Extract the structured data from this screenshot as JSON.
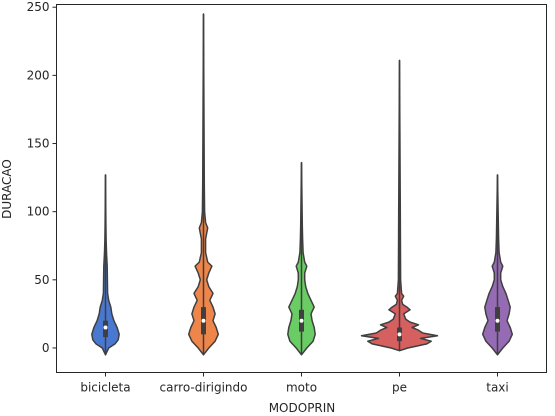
{
  "chart_data": {
    "type": "violin",
    "title": "",
    "xlabel": "MODOPRIN",
    "ylabel": "DURACAO",
    "ylim": [
      -18,
      252
    ],
    "yticks": [
      0,
      50,
      100,
      150,
      200,
      250
    ],
    "grid": false,
    "categories": [
      "bicicleta",
      "carro-dirigindo",
      "moto",
      "pe",
      "taxi"
    ],
    "colors": [
      "#4878d0",
      "#ee854a",
      "#6acc64",
      "#d65f5f",
      "#956cb4"
    ],
    "violins": [
      {
        "category": "bicicleta",
        "min": -5,
        "max": 127,
        "q1": 8,
        "median": 15,
        "q3": 20,
        "profile": [
          [
            -5,
            0
          ],
          [
            0,
            3
          ],
          [
            3,
            9
          ],
          [
            6,
            12
          ],
          [
            10,
            13
          ],
          [
            15,
            11
          ],
          [
            20,
            8
          ],
          [
            25,
            6
          ],
          [
            30,
            5
          ],
          [
            35,
            3
          ],
          [
            40,
            2
          ],
          [
            50,
            1.8
          ],
          [
            60,
            1.6
          ],
          [
            70,
            0.9
          ],
          [
            80,
            0.6
          ],
          [
            90,
            0.4
          ],
          [
            127,
            0
          ]
        ]
      },
      {
        "category": "carro-dirigindo",
        "min": -5,
        "max": 245,
        "q1": 10,
        "median": 20,
        "q3": 30,
        "profile": [
          [
            -5,
            0
          ],
          [
            0,
            5
          ],
          [
            5,
            11
          ],
          [
            10,
            14
          ],
          [
            15,
            12
          ],
          [
            20,
            9
          ],
          [
            25,
            11
          ],
          [
            30,
            9
          ],
          [
            35,
            6
          ],
          [
            40,
            9
          ],
          [
            45,
            5
          ],
          [
            50,
            3
          ],
          [
            55,
            5
          ],
          [
            60,
            8
          ],
          [
            63,
            4
          ],
          [
            70,
            2
          ],
          [
            80,
            2
          ],
          [
            88,
            4
          ],
          [
            92,
            2
          ],
          [
            100,
            1
          ],
          [
            120,
            0.8
          ],
          [
            150,
            0.6
          ],
          [
            245,
            0
          ]
        ]
      },
      {
        "category": "moto",
        "min": -5,
        "max": 136,
        "q1": 12,
        "median": 20,
        "q3": 28,
        "profile": [
          [
            -5,
            0
          ],
          [
            0,
            5
          ],
          [
            5,
            11
          ],
          [
            10,
            13
          ],
          [
            15,
            12
          ],
          [
            20,
            10
          ],
          [
            25,
            9
          ],
          [
            30,
            12
          ],
          [
            35,
            9
          ],
          [
            40,
            6
          ],
          [
            45,
            4
          ],
          [
            50,
            3
          ],
          [
            55,
            3
          ],
          [
            60,
            5
          ],
          [
            63,
            3
          ],
          [
            70,
            1.5
          ],
          [
            80,
            1
          ],
          [
            90,
            0.8
          ],
          [
            136,
            0
          ]
        ]
      },
      {
        "category": "pe",
        "min": -2,
        "max": 211,
        "q1": 5,
        "median": 10,
        "q3": 15,
        "profile": [
          [
            -2,
            0
          ],
          [
            0,
            8
          ],
          [
            3,
            26
          ],
          [
            5,
            30
          ],
          [
            7,
            20
          ],
          [
            9,
            36
          ],
          [
            11,
            22
          ],
          [
            13,
            18
          ],
          [
            15,
            12
          ],
          [
            17,
            18
          ],
          [
            19,
            10
          ],
          [
            21,
            6
          ],
          [
            25,
            4
          ],
          [
            28,
            10
          ],
          [
            30,
            7
          ],
          [
            32,
            3
          ],
          [
            35,
            2
          ],
          [
            38,
            4
          ],
          [
            40,
            2
          ],
          [
            50,
            1
          ],
          [
            100,
            0.8
          ],
          [
            211,
            0
          ]
        ]
      },
      {
        "category": "taxi",
        "min": -5,
        "max": 127,
        "q1": 12,
        "median": 20,
        "q3": 30,
        "profile": [
          [
            -5,
            0
          ],
          [
            0,
            5
          ],
          [
            5,
            11
          ],
          [
            10,
            14
          ],
          [
            15,
            12
          ],
          [
            20,
            9
          ],
          [
            25,
            11
          ],
          [
            30,
            12
          ],
          [
            35,
            10
          ],
          [
            40,
            8
          ],
          [
            45,
            5
          ],
          [
            50,
            3
          ],
          [
            55,
            3
          ],
          [
            60,
            5
          ],
          [
            63,
            3
          ],
          [
            70,
            1.5
          ],
          [
            80,
            1
          ],
          [
            127,
            0
          ]
        ]
      }
    ]
  }
}
